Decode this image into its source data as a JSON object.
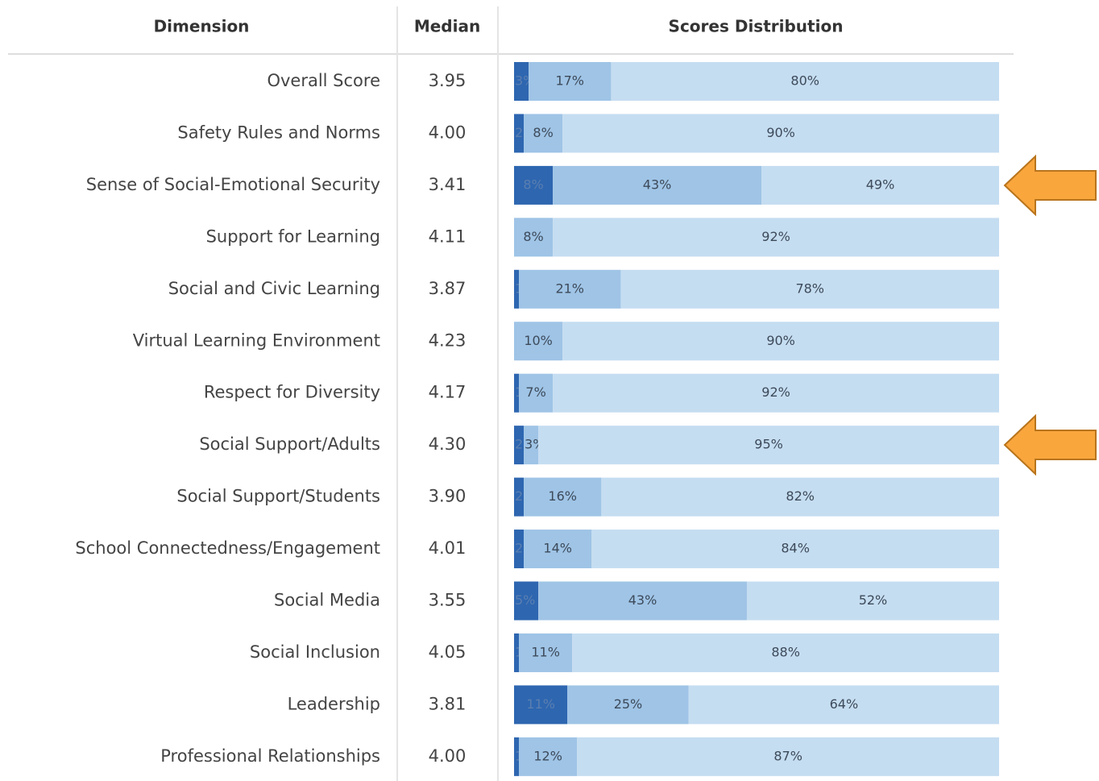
{
  "chart_data": {
    "type": "bar",
    "orientation": "horizontal",
    "stacked": true,
    "columns": [
      "Dimension",
      "Median",
      "Scores Distribution"
    ],
    "categories": [
      "Overall Score",
      "Safety Rules and Norms",
      "Sense of Social-Emotional Security",
      "Support for Learning",
      "Social and Civic Learning",
      "Virtual Learning Environment",
      "Respect for Diversity",
      "Social Support/Adults",
      "Social Support/Students",
      "School Connectedness/Engagement",
      "Social Media",
      "Social Inclusion",
      "Leadership",
      "Professional Relationships"
    ],
    "medians": [
      "3.95",
      "4.00",
      "3.41",
      "4.11",
      "3.87",
      "4.23",
      "4.17",
      "4.30",
      "3.90",
      "4.01",
      "3.55",
      "4.05",
      "3.81",
      "4.00"
    ],
    "xlim": [
      0,
      100
    ],
    "series": [
      {
        "color": "#2e66b0",
        "text_color": "#5a7fb0",
        "values": [
          3,
          2,
          8,
          0,
          1,
          0,
          1,
          2,
          2,
          2,
          5,
          1,
          11,
          1
        ],
        "value_labels": [
          "3%",
          "2%",
          "8%",
          null,
          "1%",
          null,
          "1%",
          "2%",
          "2%",
          "2%",
          "5%",
          "1%",
          "11%",
          "1%"
        ]
      },
      {
        "color": "#9fc4e6",
        "text_color": "#3d4a5a",
        "values": [
          17,
          8,
          43,
          8,
          21,
          10,
          7,
          3,
          16,
          14,
          43,
          11,
          25,
          12
        ],
        "value_labels": [
          "17%",
          "8%",
          "43%",
          "8%",
          "21%",
          "10%",
          "7%",
          "3%",
          "16%",
          "14%",
          "43%",
          "11%",
          "25%",
          "12%"
        ]
      },
      {
        "color": "#c5ddf1",
        "text_color": "#3d4a5a",
        "values": [
          80,
          90,
          49,
          92,
          78,
          90,
          92,
          95,
          82,
          84,
          52,
          88,
          64,
          87
        ],
        "value_labels": [
          "80%",
          "90%",
          "49%",
          "92%",
          "78%",
          "90%",
          "92%",
          "95%",
          "82%",
          "84%",
          "52%",
          "88%",
          "64%",
          "87%"
        ]
      }
    ]
  }
}
